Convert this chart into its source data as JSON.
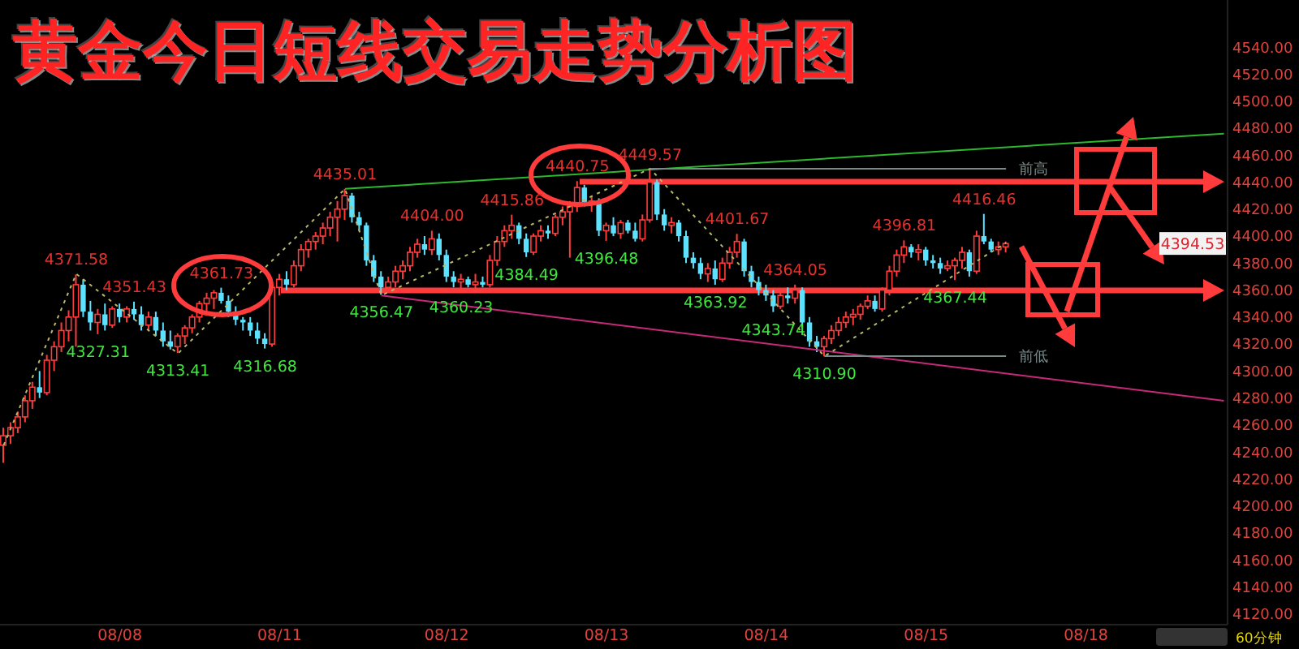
{
  "chart_data": {
    "type": "candlestick",
    "title": "黄金今日短线交易走势分析图",
    "categories": [
      null,
      null,
      null,
      null,
      null,
      null,
      null,
      null,
      null,
      null,
      null,
      null,
      null,
      null,
      null,
      null,
      "08/08",
      null,
      null,
      null,
      null,
      null,
      null,
      null,
      null,
      null,
      null,
      null,
      null,
      null,
      null,
      null,
      null,
      null,
      null,
      null,
      null,
      null,
      "08/11",
      null,
      null,
      null,
      null,
      null,
      null,
      null,
      null,
      null,
      null,
      null,
      null,
      null,
      null,
      null,
      null,
      null,
      null,
      null,
      null,
      null,
      null,
      "08/12",
      null,
      null,
      null,
      null,
      null,
      null,
      null,
      null,
      null,
      null,
      null,
      null,
      null,
      null,
      null,
      null,
      null,
      null,
      null,
      null,
      null,
      "08/13",
      null,
      null,
      null,
      null,
      null,
      null,
      null,
      null,
      null,
      null,
      null,
      null,
      null,
      null,
      null,
      null,
      null,
      null,
      null,
      null,
      null,
      "08/14",
      null,
      null,
      null,
      null,
      null,
      null,
      null,
      null,
      null,
      null,
      null,
      null,
      null,
      null,
      null,
      null,
      null,
      null,
      null,
      null,
      null,
      "08/15",
      null,
      null,
      null,
      null,
      null,
      null,
      null,
      null,
      null,
      null,
      null,
      null,
      null,
      null,
      null,
      null,
      null,
      null,
      null,
      null,
      null,
      "08/18",
      null,
      null,
      null,
      null,
      null,
      null,
      null,
      null,
      null,
      null,
      null,
      null,
      null,
      null,
      null,
      null,
      null,
      null,
      null
    ],
    "ylim": [
      4112,
      4575
    ],
    "yticks": [
      {
        "value": 4120,
        "label": "4120.00"
      },
      {
        "value": 4140,
        "label": "4140.00"
      },
      {
        "value": 4160,
        "label": "4160.00"
      },
      {
        "value": 4180,
        "label": "4180.00"
      },
      {
        "value": 4200,
        "label": "4200.00"
      },
      {
        "value": 4220,
        "label": "4220.00"
      },
      {
        "value": 4240,
        "label": "4240.00"
      },
      {
        "value": 4260,
        "label": "4260.00"
      },
      {
        "value": 4280,
        "label": "4280.00"
      },
      {
        "value": 4300,
        "label": "4300.00"
      },
      {
        "value": 4320,
        "label": "4320.00"
      },
      {
        "value": 4340,
        "label": "4340.00"
      },
      {
        "value": 4360,
        "label": "4360.00"
      },
      {
        "value": 4380,
        "label": "4380.00"
      },
      {
        "value": 4400,
        "label": "4400.00"
      },
      {
        "value": 4420,
        "label": "4420.00"
      },
      {
        "value": 4440,
        "label": "4440.00"
      },
      {
        "value": 4460,
        "label": "4460.00"
      },
      {
        "value": 4480,
        "label": "4480.00"
      },
      {
        "value": 4500,
        "label": "4500.00"
      },
      {
        "value": 4520,
        "label": "4520.00"
      },
      {
        "value": 4540,
        "label": "4540.00"
      }
    ],
    "series": [
      {
        "ohlc": [
          [
            4245,
            4258,
            4232,
            4252
          ],
          [
            4252,
            4262,
            4246,
            4258
          ],
          [
            4258,
            4270,
            4254,
            4266
          ],
          [
            4266,
            4282,
            4262,
            4278
          ],
          [
            4278,
            4292,
            4272,
            4288
          ],
          [
            4288,
            4300,
            4280,
            4284
          ],
          [
            4284,
            4312,
            4282,
            4308
          ],
          [
            4308,
            4322,
            4300,
            4318
          ],
          [
            4318,
            4336,
            4314,
            4330
          ],
          [
            4330,
            4345,
            4322,
            4340
          ],
          [
            4340,
            4371.58,
            4318,
            4364
          ],
          [
            4364,
            4368,
            4340,
            4344
          ],
          [
            4344,
            4352,
            4330,
            4336
          ],
          [
            4336,
            4346,
            4327.31,
            4342
          ],
          [
            4342,
            4350,
            4330,
            4334
          ],
          [
            4334,
            4348,
            4332,
            4346
          ],
          [
            4346,
            4350,
            4336,
            4340
          ],
          [
            4340,
            4348,
            4336,
            4346
          ],
          [
            4346,
            4351.43,
            4338,
            4342
          ],
          [
            4342,
            4348,
            4330,
            4334
          ],
          [
            4334,
            4344,
            4330,
            4340
          ],
          [
            4340,
            4344,
            4326,
            4330
          ],
          [
            4330,
            4336,
            4318,
            4322
          ],
          [
            4322,
            4330,
            4316,
            4318
          ],
          [
            4318,
            4328,
            4313.41,
            4326
          ],
          [
            4326,
            4334,
            4320,
            4332
          ],
          [
            4332,
            4342,
            4328,
            4340
          ],
          [
            4340,
            4352,
            4336,
            4350
          ],
          [
            4350,
            4358,
            4344,
            4354
          ],
          [
            4354,
            4360,
            4346,
            4358
          ],
          [
            4358,
            4361.73,
            4350,
            4352
          ],
          [
            4352,
            4356,
            4340,
            4344
          ],
          [
            4344,
            4348,
            4334,
            4338
          ],
          [
            4338,
            4340,
            4330,
            4336
          ],
          [
            4336,
            4340,
            4326,
            4330
          ],
          [
            4330,
            4336,
            4320,
            4324
          ],
          [
            4324,
            4328,
            4316.68,
            4320
          ],
          [
            4320,
            4366,
            4318,
            4362
          ],
          [
            4362,
            4372,
            4356,
            4368
          ],
          [
            4368,
            4374,
            4360,
            4364
          ],
          [
            4364,
            4382,
            4362,
            4378
          ],
          [
            4378,
            4394,
            4374,
            4390
          ],
          [
            4390,
            4398,
            4384,
            4396
          ],
          [
            4396,
            4403,
            4390,
            4400
          ],
          [
            4400,
            4410,
            4394,
            4406
          ],
          [
            4406,
            4418,
            4400,
            4414
          ],
          [
            4414,
            4426,
            4396,
            4420
          ],
          [
            4420,
            4435.01,
            4412,
            4430
          ],
          [
            4430,
            4432,
            4410,
            4414
          ],
          [
            4414,
            4418,
            4404,
            4408
          ],
          [
            4408,
            4410,
            4378,
            4382
          ],
          [
            4382,
            4386,
            4366,
            4370
          ],
          [
            4370,
            4374,
            4356.47,
            4362
          ],
          [
            4362,
            4370,
            4358,
            4366
          ],
          [
            4366,
            4378,
            4362,
            4374
          ],
          [
            4374,
            4382,
            4368,
            4378
          ],
          [
            4378,
            4392,
            4374,
            4388
          ],
          [
            4388,
            4398,
            4384,
            4394
          ],
          [
            4394,
            4400,
            4386,
            4390
          ],
          [
            4390,
            4404,
            4386,
            4398
          ],
          [
            4398,
            4402,
            4382,
            4386
          ],
          [
            4386,
            4390,
            4366,
            4370
          ],
          [
            4370,
            4374,
            4362,
            4366
          ],
          [
            4366,
            4372,
            4360.23,
            4368
          ],
          [
            4368,
            4370,
            4362,
            4364
          ],
          [
            4364,
            4372,
            4360,
            4366
          ],
          [
            4366,
            4370,
            4362,
            4364
          ],
          [
            4364,
            4386,
            4362,
            4382
          ],
          [
            4382,
            4400,
            4378,
            4396
          ],
          [
            4396,
            4408,
            4392,
            4404
          ],
          [
            4404,
            4415.86,
            4398,
            4408
          ],
          [
            4408,
            4410,
            4394,
            4398
          ],
          [
            4398,
            4402,
            4384.49,
            4388
          ],
          [
            4388,
            4402,
            4386,
            4400
          ],
          [
            4400,
            4408,
            4396,
            4404
          ],
          [
            4404,
            4408,
            4398,
            4402
          ],
          [
            4402,
            4416,
            4400,
            4414
          ],
          [
            4414,
            4422,
            4408,
            4418
          ],
          [
            4418,
            4426,
            4384,
            4422
          ],
          [
            4422,
            4440.75,
            4418,
            4436
          ],
          [
            4436,
            4438,
            4422,
            4424
          ],
          [
            4424,
            4430,
            4418,
            4426
          ],
          [
            4426,
            4428,
            4400,
            4404
          ],
          [
            4404,
            4410,
            4396.48,
            4408
          ],
          [
            4408,
            4414,
            4400,
            4402
          ],
          [
            4402,
            4412,
            4398,
            4410
          ],
          [
            4410,
            4412,
            4402,
            4404
          ],
          [
            4404,
            4410,
            4396,
            4398
          ],
          [
            4398,
            4416,
            4396,
            4412
          ],
          [
            4412,
            4449.57,
            4410,
            4440
          ],
          [
            4440,
            4442,
            4412,
            4416
          ],
          [
            4416,
            4420,
            4404,
            4408
          ],
          [
            4408,
            4414,
            4402,
            4410
          ],
          [
            4410,
            4412,
            4396,
            4400
          ],
          [
            4400,
            4404,
            4380,
            4384
          ],
          [
            4384,
            4388,
            4376,
            4380
          ],
          [
            4380,
            4384,
            4368,
            4372
          ],
          [
            4372,
            4380,
            4366,
            4376
          ],
          [
            4376,
            4382,
            4363.92,
            4368
          ],
          [
            4368,
            4384,
            4366,
            4380
          ],
          [
            4380,
            4392,
            4376,
            4388
          ],
          [
            4388,
            4401.67,
            4384,
            4396
          ],
          [
            4396,
            4398,
            4370,
            4374
          ],
          [
            4374,
            4378,
            4362,
            4366
          ],
          [
            4366,
            4370,
            4356,
            4360
          ],
          [
            4360,
            4364,
            4352,
            4356
          ],
          [
            4356,
            4360,
            4343.74,
            4348
          ],
          [
            4348,
            4358,
            4346,
            4356
          ],
          [
            4356,
            4362,
            4350,
            4354
          ],
          [
            4354,
            4364.05,
            4350,
            4360
          ],
          [
            4360,
            4362,
            4332,
            4336
          ],
          [
            4336,
            4340,
            4318,
            4322
          ],
          [
            4322,
            4326,
            4314,
            4318
          ],
          [
            4318,
            4326,
            4310.9,
            4324
          ],
          [
            4324,
            4334,
            4320,
            4330
          ],
          [
            4330,
            4340,
            4326,
            4336
          ],
          [
            4336,
            4344,
            4332,
            4340
          ],
          [
            4340,
            4346,
            4334,
            4342
          ],
          [
            4342,
            4350,
            4338,
            4348
          ],
          [
            4348,
            4356,
            4346,
            4352
          ],
          [
            4352,
            4356,
            4344,
            4346
          ],
          [
            4346,
            4362,
            4344,
            4360
          ],
          [
            4360,
            4378,
            4356,
            4374
          ],
          [
            4374,
            4390,
            4370,
            4386
          ],
          [
            4386,
            4396.81,
            4380,
            4392
          ],
          [
            4392,
            4394,
            4384,
            4388
          ],
          [
            4388,
            4394,
            4382,
            4390
          ],
          [
            4390,
            4392,
            4378,
            4382
          ],
          [
            4382,
            4386,
            4376,
            4380
          ],
          [
            4380,
            4384,
            4372,
            4376
          ],
          [
            4376,
            4382,
            4374,
            4378
          ],
          [
            4378,
            4384,
            4367.44,
            4382
          ],
          [
            4382,
            4392,
            4376,
            4388
          ],
          [
            4388,
            4390,
            4370,
            4374
          ],
          [
            4374,
            4404,
            4372,
            4400
          ],
          [
            4400,
            4416.46,
            4394,
            4396
          ],
          [
            4396,
            4398,
            4388,
            4390
          ],
          [
            4390,
            4396,
            4386,
            4392
          ],
          [
            4392,
            4396,
            4388,
            4394.53
          ],
          null,
          null,
          null,
          null,
          null,
          null,
          null,
          null,
          null,
          null,
          null,
          null,
          null,
          null,
          null,
          null,
          null,
          null,
          null,
          null,
          null,
          null,
          null,
          null,
          null,
          null,
          null,
          null,
          null,
          null
        ],
        "colors": [
          "#ff3c3c",
          "#ff3c3c",
          "#ff3c3c",
          "#ff3c3c",
          "#ff3c3c",
          "#5ce1ff",
          "#ff3c3c",
          "#ff3c3c",
          "#ff3c3c",
          "#ff3c3c",
          "#ff3c3c",
          "#5ce1ff",
          "#5ce1ff",
          "#ff3c3c",
          "#5ce1ff",
          "#ff3c3c",
          "#5ce1ff",
          "#ff3c3c",
          "#5ce1ff",
          "#5ce1ff",
          "#ff3c3c",
          "#5ce1ff",
          "#5ce1ff",
          "#5ce1ff",
          "#ff3c3c",
          "#ff3c3c",
          "#ff3c3c",
          "#ff3c3c",
          "#ff3c3c",
          "#ff3c3c",
          "#5ce1ff",
          "#5ce1ff",
          "#5ce1ff",
          "#5ce1ff",
          "#5ce1ff",
          "#5ce1ff",
          "#5ce1ff",
          "#ff3c3c",
          "#ff3c3c",
          "#5ce1ff",
          "#ff3c3c",
          "#ff3c3c",
          "#ff3c3c",
          "#ff3c3c",
          "#ff3c3c",
          "#ff3c3c",
          "#ff3c3c",
          "#ff3c3c",
          "#5ce1ff",
          "#5ce1ff",
          "#5ce1ff",
          "#5ce1ff",
          "#5ce1ff",
          "#ff3c3c",
          "#ff3c3c",
          "#ff3c3c",
          "#ff3c3c",
          "#ff3c3c",
          "#5ce1ff",
          "#ff3c3c",
          "#5ce1ff",
          "#5ce1ff",
          "#5ce1ff",
          "#ff3c3c",
          "#5ce1ff",
          "#ff3c3c",
          "#5ce1ff",
          "#ff3c3c",
          "#ff3c3c",
          "#ff3c3c",
          "#ff3c3c",
          "#5ce1ff",
          "#5ce1ff",
          "#ff3c3c",
          "#ff3c3c",
          "#5ce1ff",
          "#ff3c3c",
          "#ff3c3c",
          "#ff3c3c",
          "#ff3c3c",
          "#5ce1ff",
          "#ff3c3c",
          "#5ce1ff",
          "#ff3c3c",
          "#5ce1ff",
          "#ff3c3c",
          "#5ce1ff",
          "#5ce1ff",
          "#ff3c3c",
          "#ff3c3c",
          "#5ce1ff",
          "#5ce1ff",
          "#ff3c3c",
          "#5ce1ff",
          "#5ce1ff",
          "#5ce1ff",
          "#5ce1ff",
          "#ff3c3c",
          "#5ce1ff",
          "#ff3c3c",
          "#ff3c3c",
          "#ff3c3c",
          "#5ce1ff",
          "#5ce1ff",
          "#5ce1ff",
          "#5ce1ff",
          "#5ce1ff",
          "#ff3c3c",
          "#5ce1ff",
          "#ff3c3c",
          "#5ce1ff",
          "#5ce1ff",
          "#5ce1ff",
          "#ff3c3c",
          "#ff3c3c",
          "#ff3c3c",
          "#ff3c3c",
          "#ff3c3c",
          "#ff3c3c",
          "#ff3c3c",
          "#5ce1ff",
          "#ff3c3c",
          "#ff3c3c",
          "#ff3c3c",
          "#ff3c3c",
          "#5ce1ff",
          "#ff3c3c",
          "#5ce1ff",
          "#5ce1ff",
          "#5ce1ff",
          "#ff3c3c",
          "#ff3c3c",
          "#ff3c3c",
          "#5ce1ff",
          "#ff3c3c",
          "#5ce1ff",
          "#5ce1ff",
          "#ff3c3c",
          "#ff3c3c",
          null,
          null,
          null,
          null,
          null,
          null,
          null,
          null,
          null,
          null,
          null,
          null,
          null,
          null,
          null,
          null,
          null,
          null,
          null,
          null,
          null,
          null,
          null,
          null,
          null,
          null,
          null,
          null,
          null,
          null
        ]
      },
      {
        "type": "line",
        "color": "#2db82d",
        "values": [
          null,
          null,
          null,
          null,
          null,
          null,
          null,
          null,
          null,
          null,
          null,
          null,
          null,
          null,
          null,
          null,
          null,
          null,
          null,
          null,
          null,
          null,
          null,
          null,
          null,
          null,
          null,
          null,
          null,
          null,
          null,
          null,
          null,
          null,
          null,
          null,
          null,
          null,
          null,
          null,
          null,
          null,
          null,
          null,
          null,
          null,
          null,
          4435,
          null,
          null,
          null,
          null,
          null,
          null,
          null,
          null,
          null,
          null,
          null,
          null,
          null,
          null,
          null,
          null,
          null,
          null,
          null,
          null,
          null,
          null,
          null,
          null,
          null,
          null,
          null,
          null,
          null,
          null,
          null,
          null,
          null,
          null,
          null,
          null,
          null,
          null,
          null,
          null,
          null,
          null,
          null,
          null,
          null,
          null,
          null,
          null,
          null,
          null,
          null,
          null,
          null,
          null,
          null,
          null,
          null,
          null,
          null,
          null,
          null,
          null,
          null,
          null,
          null,
          null,
          null,
          null,
          null,
          null,
          null,
          null,
          null,
          null,
          null,
          null,
          null,
          null,
          null,
          null,
          null,
          null,
          null,
          null,
          null,
          null,
          null,
          null,
          null,
          null,
          null,
          null,
          null,
          null,
          null,
          null,
          null,
          null,
          null,
          null,
          null,
          null,
          null,
          null,
          null,
          null,
          null,
          null,
          null,
          null,
          null,
          null,
          null,
          null,
          null,
          null,
          null,
          null,
          null,
          null,
          4476
        ]
      },
      {
        "type": "line",
        "color": "#c8287a",
        "values": [
          null,
          null,
          null,
          null,
          null,
          null,
          null,
          null,
          null,
          null,
          null,
          null,
          null,
          null,
          null,
          null,
          null,
          null,
          null,
          null,
          null,
          null,
          null,
          null,
          null,
          null,
          null,
          null,
          null,
          null,
          null,
          null,
          null,
          null,
          null,
          null,
          null,
          null,
          null,
          null,
          null,
          null,
          null,
          null,
          null,
          null,
          null,
          null,
          null,
          null,
          null,
          null,
          4356,
          null,
          null,
          null,
          null,
          null,
          null,
          null,
          null,
          null,
          null,
          null,
          null,
          null,
          null,
          null,
          null,
          null,
          null,
          null,
          null,
          null,
          null,
          null,
          null,
          null,
          null,
          null,
          null,
          null,
          null,
          null,
          null,
          null,
          null,
          null,
          null,
          null,
          null,
          null,
          null,
          null,
          null,
          null,
          null,
          null,
          null,
          null,
          null,
          null,
          null,
          null,
          null,
          null,
          null,
          null,
          null,
          null,
          null,
          null,
          null,
          null,
          null,
          null,
          null,
          null,
          null,
          null,
          null,
          null,
          null,
          null,
          null,
          null,
          null,
          null,
          null,
          null,
          null,
          null,
          null,
          null,
          null,
          null,
          null,
          null,
          null,
          null,
          null,
          null,
          null,
          null,
          null,
          null,
          null,
          null,
          null,
          null,
          null,
          null,
          null,
          null,
          null,
          null,
          null,
          null,
          null,
          null,
          null,
          null,
          null,
          null,
          null,
          null,
          null,
          null,
          4278
        ]
      },
      {
        "type": "line",
        "color": "#b8b86a",
        "line_style": "dotted",
        "values": [
          4245,
          null,
          null,
          null,
          null,
          null,
          null,
          null,
          null,
          null,
          4372,
          null,
          null,
          null,
          null,
          null,
          null,
          null,
          null,
          null,
          null,
          null,
          null,
          null,
          4313,
          null,
          null,
          null,
          null,
          null,
          null,
          null,
          null,
          null,
          null,
          null,
          null,
          null,
          null,
          null,
          null,
          null,
          null,
          null,
          null,
          null,
          null,
          4435,
          null,
          null,
          null,
          null,
          4356,
          null,
          null,
          null,
          null,
          null,
          null,
          null,
          null,
          null,
          null,
          null,
          null,
          null,
          null,
          null,
          null,
          null,
          null,
          null,
          null,
          null,
          null,
          null,
          null,
          null,
          null,
          null,
          null,
          null,
          null,
          null,
          null,
          null,
          null,
          null,
          null,
          4450,
          null,
          null,
          null,
          null,
          null,
          null,
          null,
          null,
          null,
          null,
          null,
          null,
          null,
          null,
          null,
          null,
          null,
          null,
          null,
          null,
          null,
          null,
          null,
          4311,
          null,
          null,
          null,
          null,
          null,
          null,
          null,
          null,
          null,
          null,
          null,
          null,
          null,
          null,
          null,
          null,
          null,
          null,
          null,
          null,
          null,
          null,
          null,
          null,
          4395,
          null,
          null,
          null,
          null,
          null,
          null,
          null,
          null,
          null,
          null,
          null,
          null,
          null,
          null,
          null,
          null,
          null,
          null,
          null,
          null,
          null,
          null,
          null,
          null,
          null,
          null,
          null,
          null,
          null,
          null
        ]
      },
      {
        "type": "line",
        "name": "前高",
        "color": "#7a8a88",
        "values": [
          null,
          null,
          null,
          null,
          null,
          null,
          null,
          null,
          null,
          null,
          null,
          null,
          null,
          null,
          null,
          null,
          null,
          null,
          null,
          null,
          null,
          null,
          null,
          null,
          null,
          null,
          null,
          null,
          null,
          null,
          null,
          null,
          null,
          null,
          null,
          null,
          null,
          null,
          null,
          null,
          null,
          null,
          null,
          null,
          null,
          null,
          null,
          null,
          null,
          null,
          null,
          null,
          null,
          null,
          null,
          null,
          null,
          null,
          null,
          null,
          null,
          null,
          null,
          null,
          null,
          null,
          null,
          null,
          null,
          null,
          null,
          null,
          null,
          null,
          null,
          null,
          null,
          null,
          null,
          null,
          null,
          null,
          null,
          null,
          null,
          null,
          null,
          null,
          null,
          4450,
          null,
          null,
          null,
          null,
          null,
          null,
          null,
          null,
          null,
          null,
          null,
          null,
          null,
          null,
          null,
          null,
          null,
          null,
          null,
          null,
          null,
          null,
          null,
          null,
          null,
          null,
          null,
          null,
          null,
          null,
          null,
          null,
          null,
          null,
          null,
          null,
          null,
          null,
          null,
          null,
          null,
          null,
          null,
          null,
          null,
          null,
          null,
          null,
          4450,
          null,
          null,
          null,
          null,
          null,
          null,
          null,
          null,
          null,
          null,
          null,
          null,
          null,
          null,
          null,
          null,
          null,
          null,
          null,
          null,
          null,
          null,
          null,
          null,
          null,
          null,
          null,
          null,
          null,
          null
        ]
      },
      {
        "type": "line",
        "name": "前低",
        "color": "#7a8a88",
        "values": [
          null,
          null,
          null,
          null,
          null,
          null,
          null,
          null,
          null,
          null,
          null,
          null,
          null,
          null,
          null,
          null,
          null,
          null,
          null,
          null,
          null,
          null,
          null,
          null,
          null,
          null,
          null,
          null,
          null,
          null,
          null,
          null,
          null,
          null,
          null,
          null,
          null,
          null,
          null,
          null,
          null,
          null,
          null,
          null,
          null,
          null,
          null,
          null,
          null,
          null,
          null,
          null,
          null,
          null,
          null,
          null,
          null,
          null,
          null,
          null,
          null,
          null,
          null,
          null,
          null,
          null,
          null,
          null,
          null,
          null,
          null,
          null,
          null,
          null,
          null,
          null,
          null,
          null,
          null,
          null,
          null,
          null,
          null,
          null,
          null,
          null,
          null,
          null,
          null,
          null,
          null,
          null,
          null,
          null,
          null,
          null,
          null,
          null,
          null,
          null,
          null,
          null,
          null,
          null,
          null,
          null,
          null,
          null,
          null,
          null,
          null,
          null,
          null,
          4311,
          null,
          null,
          null,
          null,
          null,
          null,
          null,
          null,
          null,
          null,
          null,
          null,
          null,
          null,
          null,
          null,
          null,
          null,
          null,
          null,
          null,
          null,
          null,
          null,
          4311,
          null,
          null,
          null,
          null,
          null,
          null,
          null,
          null,
          null,
          null,
          null,
          null,
          null,
          null,
          null,
          null,
          null,
          null,
          null,
          null,
          null,
          null,
          null,
          null,
          null,
          null,
          null,
          null,
          null,
          null
        ]
      }
    ],
    "annotations": [
      {
        "text": "4371.58",
        "y": 4371.58
      },
      {
        "text": "4327.31",
        "y": 4327.31
      },
      {
        "text": "4351.43",
        "y": 4351.43
      },
      {
        "text": "4313.41",
        "y": 4313.41
      },
      {
        "text": "4361.73",
        "y": 4361.73
      },
      {
        "text": "4316.68",
        "y": 4316.68
      },
      {
        "text": "4435.01",
        "y": 4435.01
      },
      {
        "text": "4356.47",
        "y": 4356.47
      },
      {
        "text": "4404.00",
        "y": 4404
      },
      {
        "text": "4360.23",
        "y": 4360.23
      },
      {
        "text": "4415.86",
        "y": 4415.86
      },
      {
        "text": "4384.49",
        "y": 4384.49
      },
      {
        "text": "4440.75",
        "y": 4440.75
      },
      {
        "text": "4396.48",
        "y": 4396.48
      },
      {
        "text": "4449.57",
        "y": 4449.57
      },
      {
        "text": "4363.92",
        "y": 4363.92
      },
      {
        "text": "4401.67",
        "y": 4401.67
      },
      {
        "text": "4343.74",
        "y": 4343.74
      },
      {
        "text": "4364.05",
        "y": 4364.05
      },
      {
        "text": "4310.90",
        "y": 4310.9
      },
      {
        "text": "4396.81",
        "y": 4396.81
      },
      {
        "text": "4367.44",
        "y": 4367.44
      },
      {
        "text": "4416.46",
        "y": 4416.46
      },
      {
        "text": "4394.53",
        "y": 4394.53
      },
      "60分钟"
    ]
  }
}
